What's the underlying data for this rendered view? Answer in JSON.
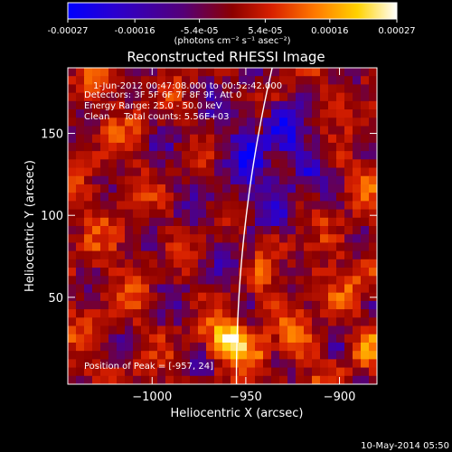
{
  "chart_data": {
    "type": "heatmap",
    "title": "Reconstructed RHESSI Image",
    "xlabel": "Heliocentric X (arcsec)",
    "ylabel": "Heliocentric Y (arcsec)",
    "xlim": [
      -1045,
      -880
    ],
    "ylim": [
      -3,
      190
    ],
    "x_ticks": [
      -1000,
      -950,
      -900
    ],
    "x_tick_labels": [
      "−1000",
      "−950",
      "−900"
    ],
    "y_ticks": [
      50,
      100,
      150
    ],
    "y_tick_labels": [
      "50",
      "100",
      "150"
    ],
    "colorbar": {
      "range": [
        -0.00027,
        0.00027
      ],
      "ticks": [
        -0.00027,
        -0.00016,
        -5.4e-05,
        5.4e-05,
        0.00016,
        0.00027
      ],
      "tick_labels": [
        "-0.00027",
        "-0.00016",
        "-5.4e-05",
        "5.4e-05",
        "0.00016",
        "0.00027"
      ],
      "units": "(photons cm⁻² s⁻¹ asec⁻²)",
      "colors": [
        "#0000ff",
        "#2a00d0",
        "#550078",
        "#8c0000",
        "#d82000",
        "#ff7800",
        "#ffd200",
        "#ffffff"
      ]
    },
    "annotations": [
      "1-Jun-2012 00:47:08.000 to 00:52:42.000",
      "Detectors: 3F 5F 6F 7F 8F 9F, Att 0",
      "Energy Range: 25.0 - 50.0 keV",
      "Clean     Total counts: 5.56E+03",
      "Position of Peak = [-957, 24]"
    ],
    "peak": {
      "x": -957,
      "y": 24
    },
    "grid": false,
    "legend": "none"
  },
  "footer": {
    "date": "10-May-2014 05:50"
  },
  "colors": {
    "background": "#000000",
    "foreground": "#ffffff",
    "limb": "#ffffff"
  }
}
